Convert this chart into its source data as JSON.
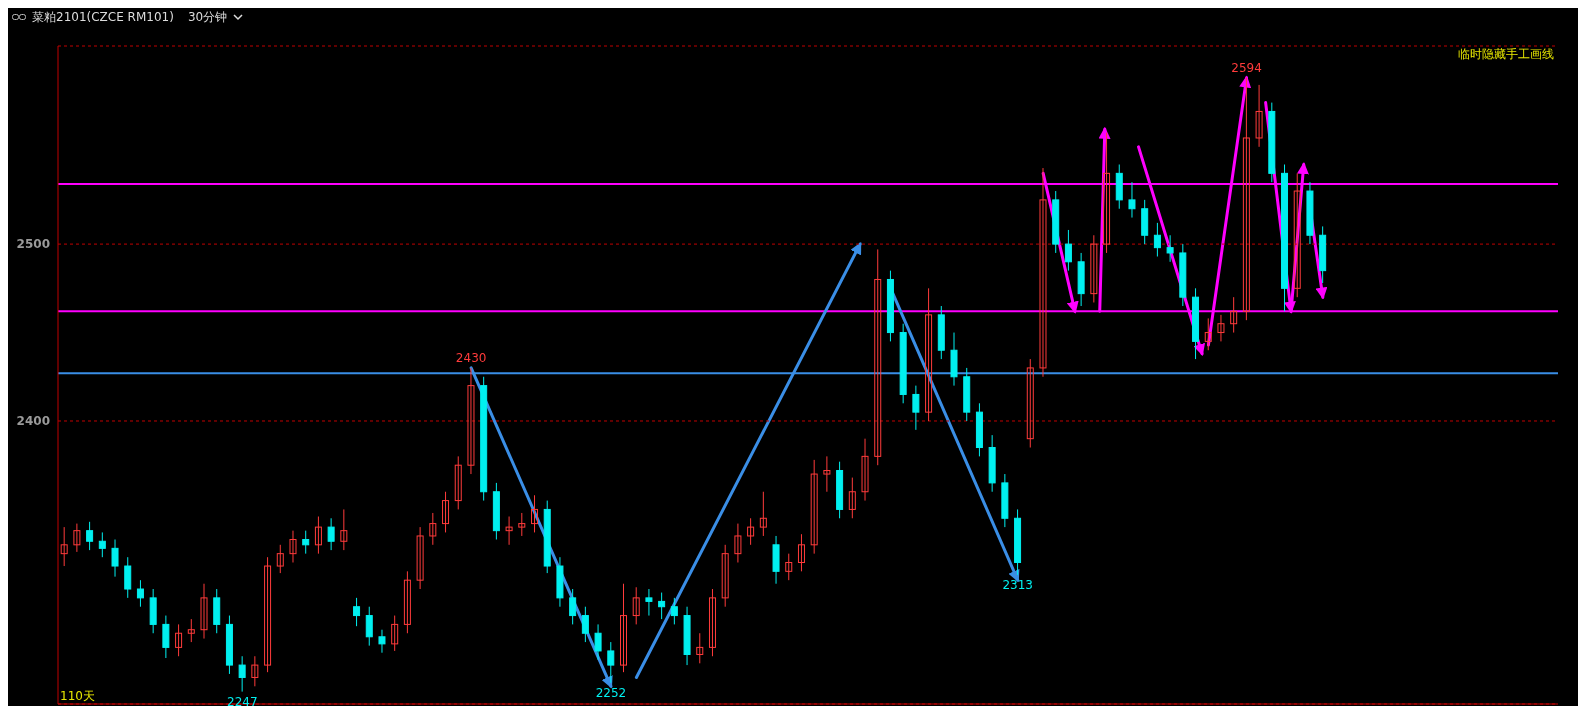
{
  "chart_data": {
    "type": "candlestick",
    "title": "菜粕2101(CZCE RM101)",
    "subtitle": "30分钟",
    "categories": [
      null,
      null,
      null,
      null,
      null,
      null,
      null,
      null,
      null,
      null,
      null,
      null,
      null,
      null,
      null,
      null,
      null,
      null,
      null,
      null,
      null,
      null,
      null,
      null,
      null,
      null,
      null,
      null,
      null,
      null,
      null,
      null,
      null,
      null,
      null,
      null,
      null,
      null,
      null,
      null,
      null,
      null,
      null,
      null,
      null,
      null,
      null,
      null,
      null,
      null,
      null,
      null,
      null,
      null,
      null,
      null,
      null,
      null,
      null,
      null,
      null,
      null,
      null,
      null,
      null,
      null,
      null,
      null,
      null,
      null,
      null,
      null,
      null,
      null,
      null,
      null,
      null,
      null,
      null,
      null,
      null,
      null,
      null,
      null,
      null,
      null,
      null,
      null,
      null,
      null,
      null,
      null,
      null,
      null,
      null,
      null,
      null,
      null,
      null,
      null,
      null,
      null,
      null,
      null,
      null,
      null,
      null,
      null,
      null,
      null,
      null,
      null,
      null,
      null,
      null,
      null,
      null,
      null
    ],
    "ohlc": [
      [
        2325,
        2340,
        2318,
        2330
      ],
      [
        2330,
        2342,
        2326,
        2338
      ],
      [
        2338,
        2343,
        2327,
        2332
      ],
      [
        2332,
        2337,
        2323,
        2328
      ],
      [
        2328,
        2333,
        2312,
        2318
      ],
      [
        2318,
        2323,
        2300,
        2305
      ],
      [
        2305,
        2310,
        2295,
        2300
      ],
      [
        2300,
        2305,
        2280,
        2285
      ],
      [
        2285,
        2290,
        2266,
        2272
      ],
      [
        2272,
        2285,
        2267,
        2280
      ],
      [
        2280,
        2288,
        2275,
        2282
      ],
      [
        2282,
        2308,
        2277,
        2300
      ],
      [
        2300,
        2305,
        2280,
        2285
      ],
      [
        2285,
        2290,
        2257,
        2262
      ],
      [
        2262,
        2267,
        2247,
        2255
      ],
      [
        2255,
        2267,
        2250,
        2262
      ],
      [
        2262,
        2323,
        2258,
        2318
      ],
      [
        2318,
        2330,
        2314,
        2325
      ],
      [
        2325,
        2338,
        2320,
        2333
      ],
      [
        2333,
        2338,
        2325,
        2330
      ],
      [
        2330,
        2346,
        2325,
        2340
      ],
      [
        2340,
        2345,
        2327,
        2332
      ],
      [
        2332,
        2350,
        2327,
        2338
      ],
      [
        2295,
        2300,
        2284,
        2290
      ],
      [
        2290,
        2295,
        2273,
        2278
      ],
      [
        2278,
        2282,
        2269,
        2274
      ],
      [
        2274,
        2290,
        2270,
        2285
      ],
      [
        2285,
        2315,
        2280,
        2310
      ],
      [
        2310,
        2340,
        2305,
        2335
      ],
      [
        2335,
        2348,
        2330,
        2342
      ],
      [
        2342,
        2360,
        2337,
        2355
      ],
      [
        2355,
        2380,
        2350,
        2375
      ],
      [
        2375,
        2430,
        2370,
        2420
      ],
      [
        2420,
        2425,
        2355,
        2360
      ],
      [
        2360,
        2365,
        2333,
        2338
      ],
      [
        2338,
        2346,
        2330,
        2340
      ],
      [
        2340,
        2348,
        2335,
        2342
      ],
      [
        2342,
        2358,
        2337,
        2350
      ],
      [
        2350,
        2355,
        2314,
        2318
      ],
      [
        2318,
        2323,
        2295,
        2300
      ],
      [
        2300,
        2305,
        2285,
        2290
      ],
      [
        2290,
        2295,
        2275,
        2280
      ],
      [
        2280,
        2285,
        2265,
        2270
      ],
      [
        2270,
        2275,
        2252,
        2262
      ],
      [
        2262,
        2308,
        2258,
        2290
      ],
      [
        2290,
        2306,
        2285,
        2300
      ],
      [
        2300,
        2305,
        2290,
        2298
      ],
      [
        2298,
        2303,
        2288,
        2295
      ],
      [
        2295,
        2300,
        2285,
        2290
      ],
      [
        2290,
        2295,
        2262,
        2268
      ],
      [
        2268,
        2280,
        2263,
        2272
      ],
      [
        2272,
        2305,
        2267,
        2300
      ],
      [
        2300,
        2330,
        2295,
        2325
      ],
      [
        2325,
        2342,
        2320,
        2335
      ],
      [
        2335,
        2345,
        2330,
        2340
      ],
      [
        2340,
        2360,
        2335,
        2345
      ],
      [
        2330,
        2335,
        2308,
        2315
      ],
      [
        2315,
        2325,
        2310,
        2320
      ],
      [
        2320,
        2336,
        2315,
        2330
      ],
      [
        2330,
        2378,
        2325,
        2370
      ],
      [
        2370,
        2380,
        2360,
        2372
      ],
      [
        2372,
        2377,
        2345,
        2350
      ],
      [
        2350,
        2368,
        2345,
        2360
      ],
      [
        2360,
        2390,
        2355,
        2380
      ],
      [
        2380,
        2497,
        2375,
        2480
      ],
      [
        2480,
        2485,
        2445,
        2450
      ],
      [
        2450,
        2455,
        2410,
        2415
      ],
      [
        2415,
        2420,
        2395,
        2405
      ],
      [
        2405,
        2475,
        2400,
        2460
      ],
      [
        2460,
        2465,
        2435,
        2440
      ],
      [
        2440,
        2450,
        2420,
        2425
      ],
      [
        2425,
        2430,
        2400,
        2405
      ],
      [
        2405,
        2410,
        2380,
        2385
      ],
      [
        2385,
        2392,
        2360,
        2365
      ],
      [
        2365,
        2370,
        2340,
        2345
      ],
      [
        2345,
        2350,
        2313,
        2320
      ],
      [
        2390,
        2435,
        2385,
        2430
      ],
      [
        2430,
        2543,
        2425,
        2525
      ],
      [
        2525,
        2530,
        2495,
        2500
      ],
      [
        2500,
        2508,
        2485,
        2490
      ],
      [
        2490,
        2495,
        2465,
        2472
      ],
      [
        2472,
        2505,
        2467,
        2500
      ],
      [
        2500,
        2563,
        2495,
        2540
      ],
      [
        2540,
        2545,
        2520,
        2525
      ],
      [
        2525,
        2535,
        2515,
        2520
      ],
      [
        2520,
        2525,
        2500,
        2505
      ],
      [
        2505,
        2512,
        2493,
        2498
      ],
      [
        2498,
        2505,
        2490,
        2495
      ],
      [
        2495,
        2500,
        2465,
        2470
      ],
      [
        2470,
        2475,
        2435,
        2445
      ],
      [
        2445,
        2458,
        2440,
        2450
      ],
      [
        2450,
        2460,
        2445,
        2455
      ],
      [
        2455,
        2470,
        2450,
        2462
      ],
      [
        2462,
        2594,
        2457,
        2560
      ],
      [
        2560,
        2590,
        2555,
        2575
      ],
      [
        2575,
        2580,
        2535,
        2540
      ],
      [
        2540,
        2545,
        2462,
        2475
      ],
      [
        2475,
        2540,
        2470,
        2530
      ],
      [
        2530,
        2535,
        2500,
        2505
      ],
      [
        2505,
        2510,
        2478,
        2485
      ],
      null,
      null,
      null,
      null,
      null,
      null,
      null,
      null,
      null,
      null,
      null,
      null,
      null,
      null,
      null,
      null,
      null,
      null
    ],
    "ylim": [
      2240,
      2612
    ],
    "yticks": [
      2400,
      2500
    ],
    "grid": "y",
    "tick_labels": "y",
    "ref_lines": [
      {
        "axis": "y",
        "value": 2427,
        "color": "#3a8ee6"
      },
      {
        "axis": "y",
        "value": 2534,
        "color": "#ff00ff"
      },
      {
        "axis": "y",
        "value": 2462,
        "color": "#ff00ff"
      }
    ],
    "annotations": [
      "临时隐藏手工画线",
      "110天",
      {
        "text": "2430",
        "y": 2430
      },
      {
        "text": "2247",
        "y": 2247
      },
      {
        "text": "2252",
        "y": 2252
      },
      {
        "text": "2313",
        "y": 2313
      },
      {
        "text": "2594",
        "y": 2594
      }
    ]
  }
}
